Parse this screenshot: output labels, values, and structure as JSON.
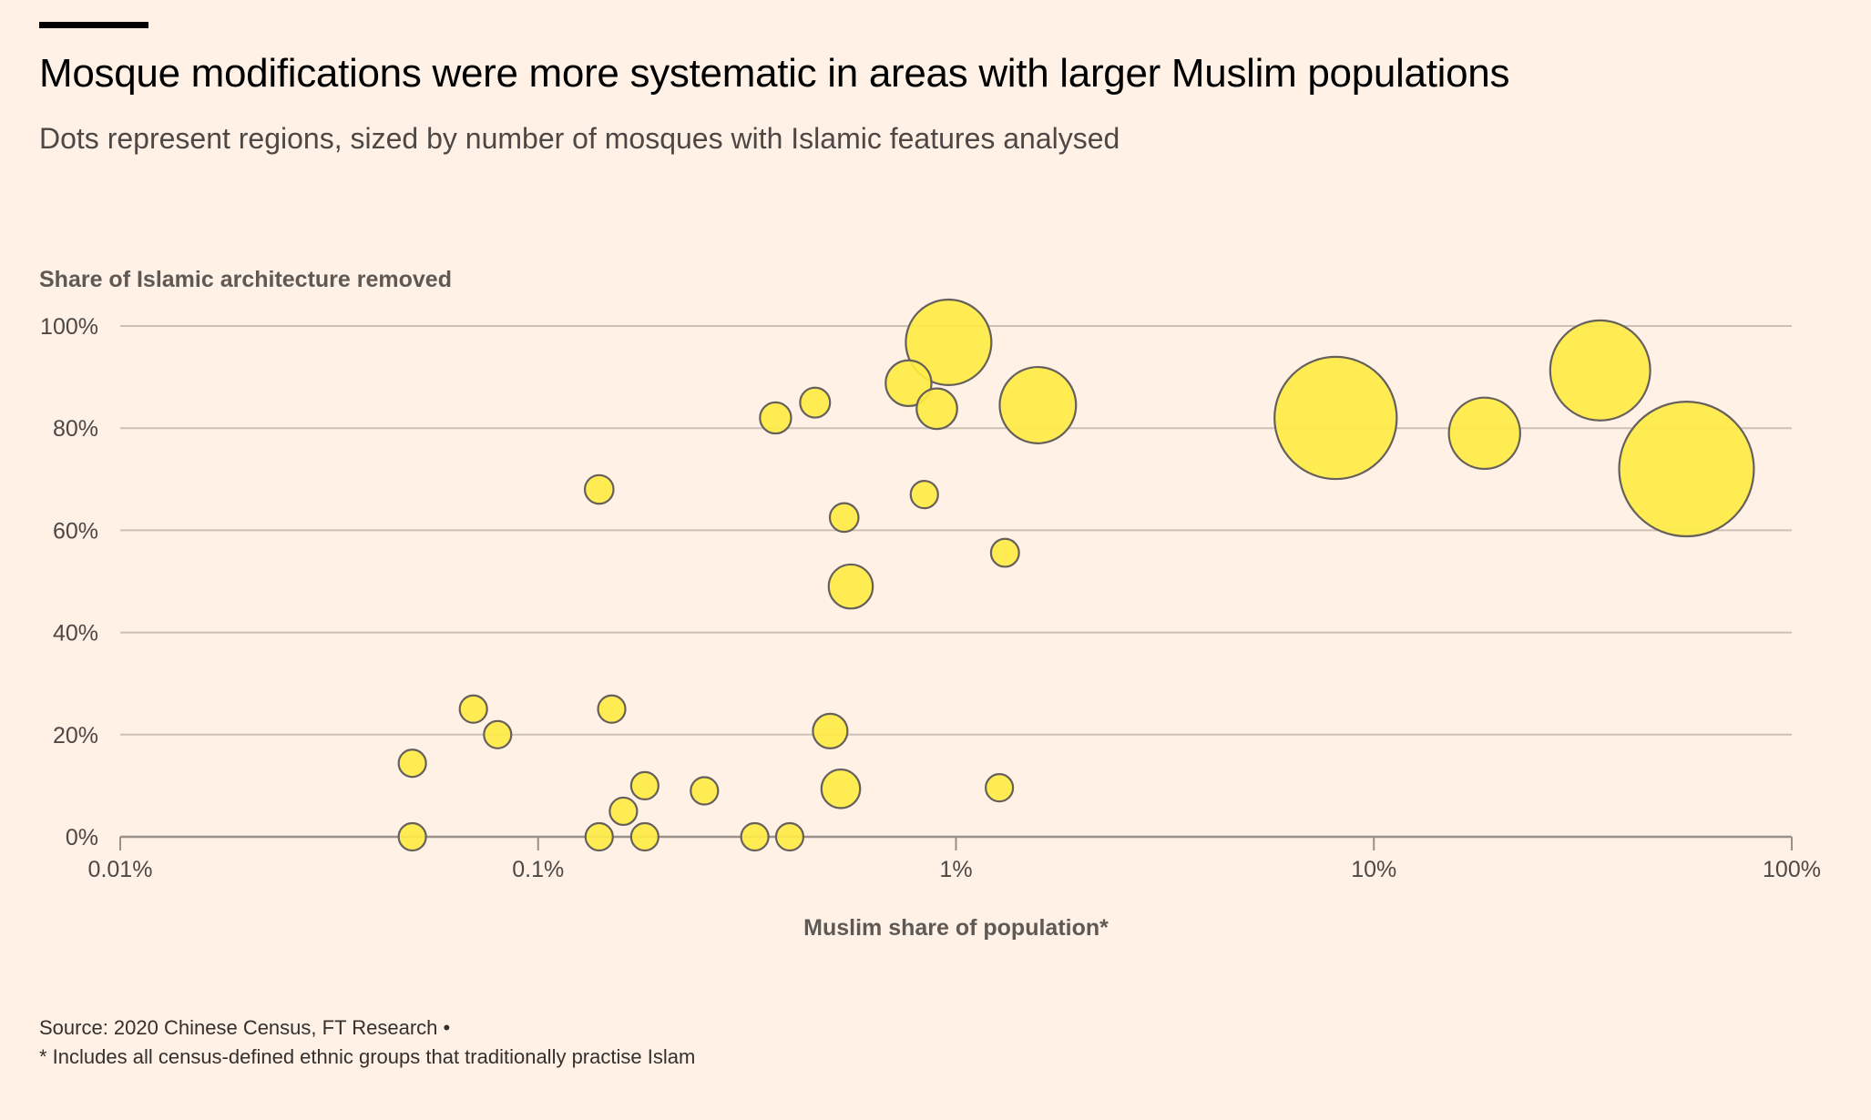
{
  "header": {
    "title": "Mosque modifications were more systematic in areas with larger Muslim populations",
    "subtitle": "Dots represent regions, sized by number of mosques with Islamic features analysed"
  },
  "footer": {
    "source": "Source: 2020 Chinese Census, FT Research •",
    "footnote": "* Includes all census-defined ethnic groups that traditionally practise Islam"
  },
  "colors": {
    "background": "#FFF1E5",
    "bubble_fill": "#FFEC47",
    "bubble_stroke": "#66605C",
    "gridline": "#CCC1B7",
    "axis": "#999089"
  },
  "chart_data": {
    "type": "scatter",
    "subtype": "bubble",
    "title": "Mosque modifications were more systematic in areas with larger Muslim populations",
    "subtitle": "Dots represent regions, sized by number of mosques with Islamic features analysed",
    "xlabel": "Muslim share of population*",
    "ylabel": "Share of Islamic architecture removed",
    "x_scale": "log",
    "xlim": [
      0.01,
      100
    ],
    "ylim": [
      0,
      100
    ],
    "x_ticks": [
      0.01,
      0.1,
      1,
      10,
      100
    ],
    "x_tick_labels": [
      "0.01%",
      "0.1%",
      "1%",
      "10%",
      "100%"
    ],
    "y_ticks": [
      0,
      20,
      40,
      60,
      80,
      100
    ],
    "y_tick_labels": [
      "0%",
      "20%",
      "40%",
      "60%",
      "80%",
      "100%"
    ],
    "grid": "horizontal",
    "legend": "none",
    "size_note": "size is relative mosque count (smallest dot = 1), estimated from bubble area",
    "points": [
      {
        "x": 0.05,
        "y": 14.4,
        "size": 1
      },
      {
        "x": 0.05,
        "y": 0,
        "size": 1
      },
      {
        "x": 0.07,
        "y": 25,
        "size": 1
      },
      {
        "x": 0.08,
        "y": 20,
        "size": 1
      },
      {
        "x": 0.14,
        "y": 68,
        "size": 1.1
      },
      {
        "x": 0.14,
        "y": 0,
        "size": 1
      },
      {
        "x": 0.15,
        "y": 25,
        "size": 1
      },
      {
        "x": 0.16,
        "y": 5,
        "size": 1
      },
      {
        "x": 0.18,
        "y": 10,
        "size": 1
      },
      {
        "x": 0.18,
        "y": 0,
        "size": 1
      },
      {
        "x": 0.25,
        "y": 9,
        "size": 1
      },
      {
        "x": 0.33,
        "y": 0,
        "size": 1
      },
      {
        "x": 0.37,
        "y": 82,
        "size": 1.3
      },
      {
        "x": 0.4,
        "y": 0,
        "size": 1
      },
      {
        "x": 0.46,
        "y": 85,
        "size": 1.2
      },
      {
        "x": 0.5,
        "y": 20.7,
        "size": 1.6
      },
      {
        "x": 0.53,
        "y": 9.4,
        "size": 2
      },
      {
        "x": 0.54,
        "y": 62.5,
        "size": 1.1
      },
      {
        "x": 0.56,
        "y": 49,
        "size": 2.6
      },
      {
        "x": 0.77,
        "y": 88.8,
        "size": 2.8
      },
      {
        "x": 0.84,
        "y": 67,
        "size": 1
      },
      {
        "x": 0.9,
        "y": 83.8,
        "size": 2.2
      },
      {
        "x": 0.96,
        "y": 96.8,
        "size": 9.8
      },
      {
        "x": 1.27,
        "y": 9.6,
        "size": 1
      },
      {
        "x": 1.31,
        "y": 55.6,
        "size": 1.05
      },
      {
        "x": 1.57,
        "y": 84.5,
        "size": 7.8
      },
      {
        "x": 8.1,
        "y": 82,
        "size": 20
      },
      {
        "x": 18.4,
        "y": 79,
        "size": 6.8
      },
      {
        "x": 34.8,
        "y": 91.3,
        "size": 13.4
      },
      {
        "x": 56,
        "y": 72,
        "size": 24.3
      }
    ]
  }
}
